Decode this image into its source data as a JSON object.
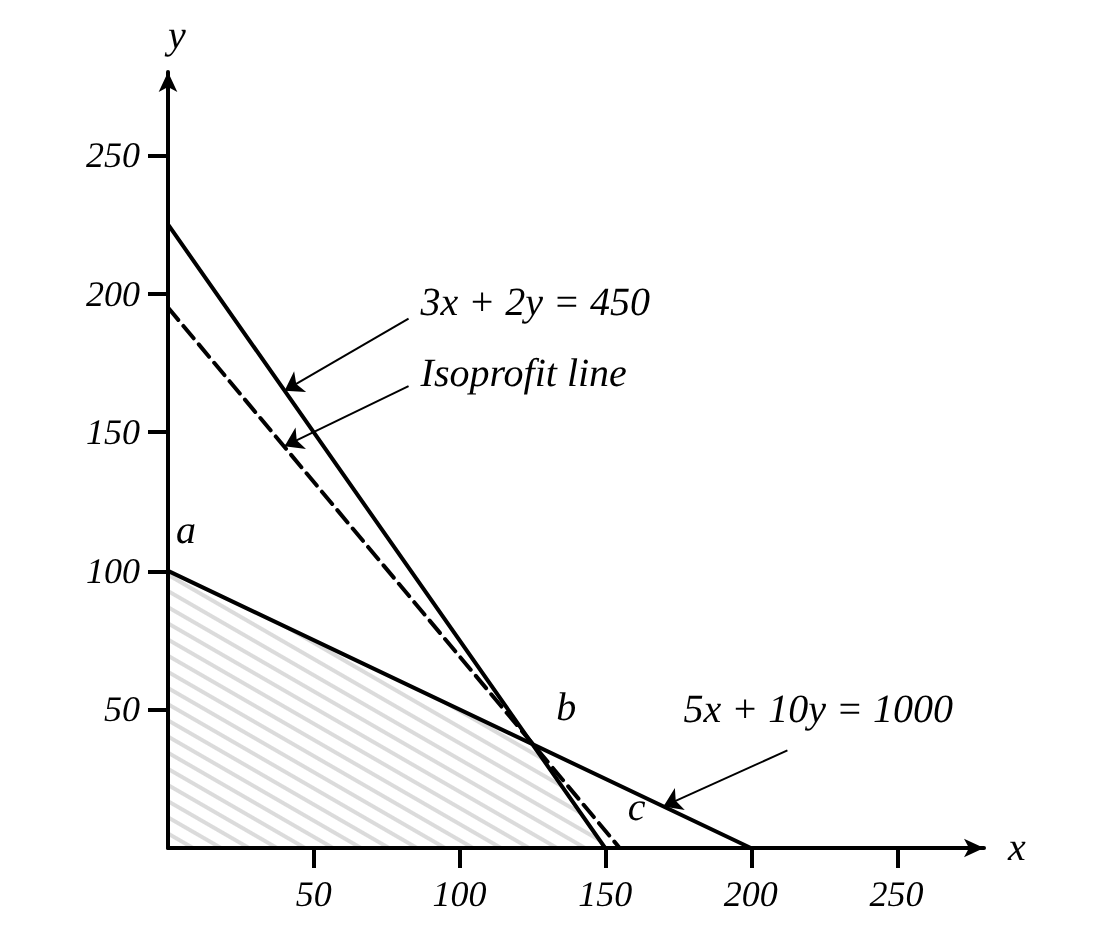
{
  "chart_data": {
    "type": "line",
    "xlabel": "x",
    "ylabel": "y",
    "xlim": [
      0,
      280
    ],
    "ylim": [
      0,
      280
    ],
    "xticks": [
      50,
      100,
      150,
      200,
      250
    ],
    "yticks": [
      50,
      100,
      150,
      200,
      250
    ],
    "marker": "none",
    "series": [
      {
        "type": "area",
        "color": "#000000",
        "x": [
          0,
          125,
          150
        ],
        "values": [
          100,
          37.5,
          0
        ]
      },
      {
        "type": "line",
        "color": "#000000",
        "x": [
          0,
          150
        ],
        "values": [
          225,
          0
        ]
      },
      {
        "type": "line",
        "color": "#000000",
        "x": [
          0,
          200
        ],
        "values": [
          100,
          0
        ]
      },
      {
        "type": "line",
        "color": "#000000",
        "line_style": "dashed",
        "x": [
          0,
          155
        ],
        "values": [
          195,
          0
        ]
      }
    ],
    "annotations": [
      {
        "text": "3x + 2y = 450",
        "x": 40,
        "y": 165
      },
      {
        "text": "Isoprofit line",
        "x": 40,
        "y": 145
      },
      {
        "text": "5x + 10y = 1000",
        "x": 170,
        "y": 15
      },
      {
        "text": "a",
        "x": 0,
        "y": 100
      },
      {
        "text": "b",
        "x": 125,
        "y": 37.5
      },
      {
        "text": "c",
        "x": 155,
        "y": 0
      }
    ]
  }
}
